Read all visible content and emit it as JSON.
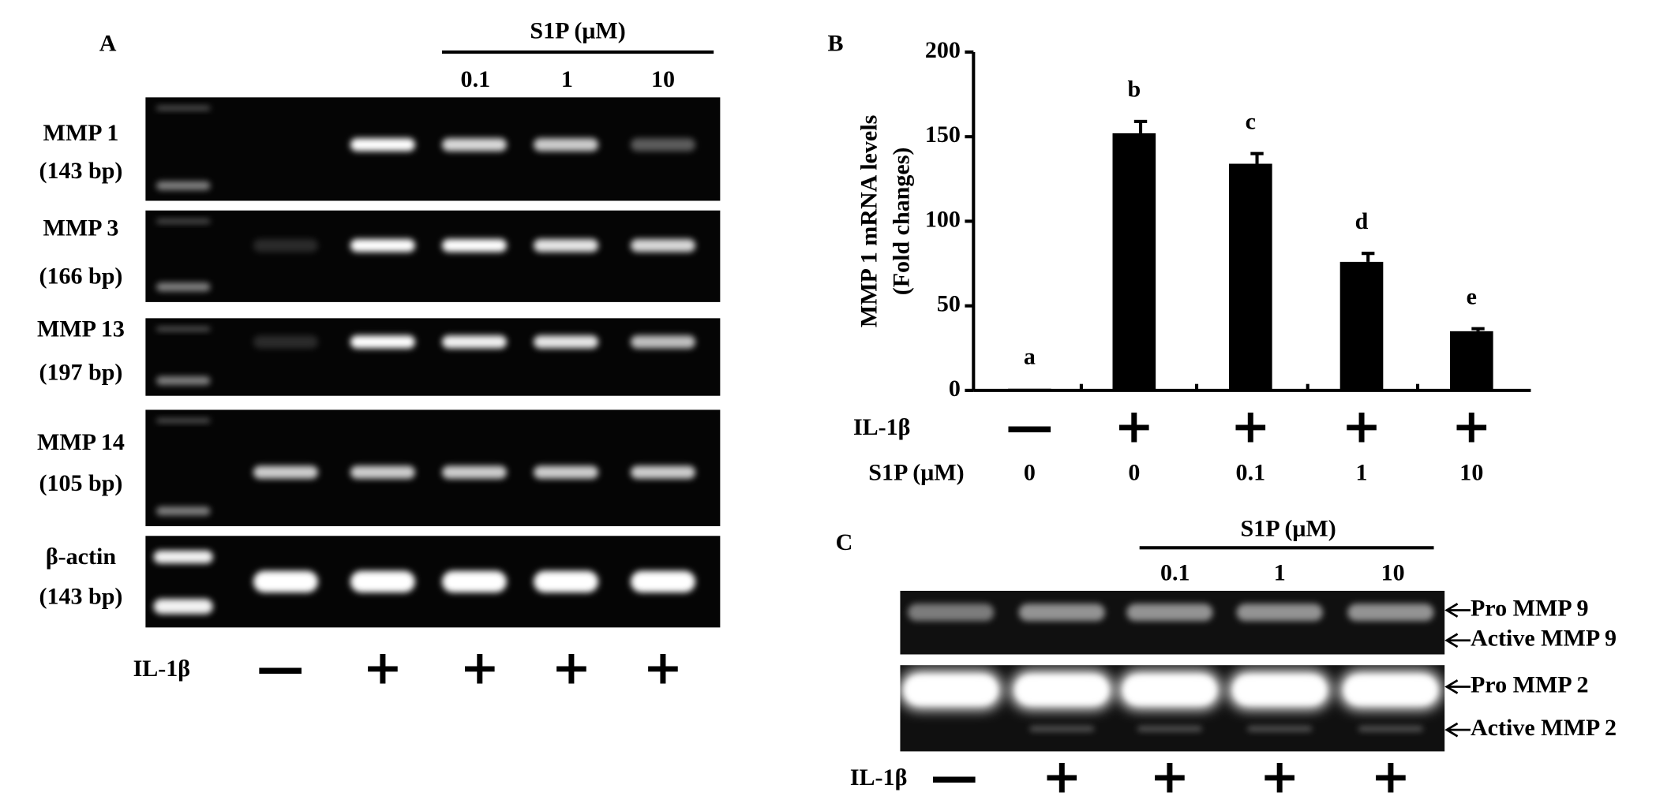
{
  "panel_a": {
    "label": "A",
    "header": "S1P (μM)",
    "doses": [
      "0.1",
      "1",
      "10"
    ],
    "rows": [
      {
        "name": "MMP 1",
        "size": "(143 bp)"
      },
      {
        "name": "MMP 3",
        "size": "(166 bp)"
      },
      {
        "name": "MMP 13",
        "size": "(197 bp)"
      },
      {
        "name": "MMP 14",
        "size": "(105 bp)"
      },
      {
        "name": "β-actin",
        "size": "(143 bp)"
      }
    ],
    "treatment": {
      "label": "IL-1β",
      "signs": [
        "—",
        "+",
        "+",
        "+",
        "+"
      ]
    }
  },
  "chart_data": {
    "type": "bar",
    "label": "B",
    "y_label": [
      "MMP 1 mRNA levels",
      "(Fold changes)"
    ],
    "values": [
      1,
      152,
      134,
      76,
      35
    ],
    "errors": [
      0,
      7,
      6,
      5,
      1.5
    ],
    "annotations": [
      "a",
      "b",
      "c",
      "d",
      "e"
    ],
    "color": "#000000",
    "ylim": [
      0,
      200
    ],
    "yticks": [
      0,
      50,
      100,
      150,
      200
    ],
    "il1b_row": {
      "label": "IL-1β",
      "values": [
        "—",
        "+",
        "+",
        "+",
        "+"
      ]
    },
    "s1p_row": {
      "label": "S1P (μM)",
      "values": [
        "0",
        "0",
        "0.1",
        "1",
        "10"
      ]
    }
  },
  "panel_c": {
    "label": "C",
    "header": "S1P (μM)",
    "doses": [
      "0.1",
      "1",
      "10"
    ],
    "bands": [
      "Pro MMP 9",
      "Active MMP 9",
      "Pro MMP 2",
      "Active MMP 2"
    ],
    "treatment": {
      "label": "IL-1β",
      "signs": [
        "—",
        "+",
        "+",
        "+",
        "+"
      ]
    }
  }
}
